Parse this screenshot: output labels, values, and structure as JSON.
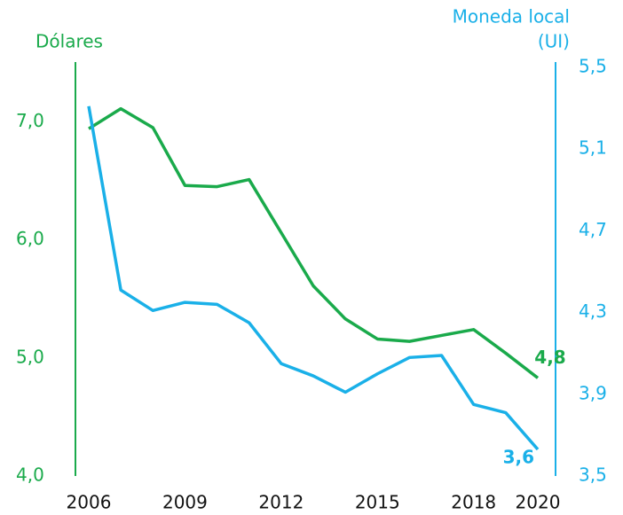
{
  "chart_data": {
    "type": "line",
    "ylabel": "Dólares",
    "y2label": [
      "Moneda local",
      "(UI)"
    ],
    "x": [
      2006,
      2007,
      2008,
      2009,
      2010,
      2011,
      2012,
      2013,
      2014,
      2015,
      2016,
      2017,
      2018,
      2019,
      2020
    ],
    "xlim": [
      2006,
      2020
    ],
    "xticks": [
      2006,
      2009,
      2012,
      2015,
      2018,
      2020
    ],
    "ylim": [
      4.0,
      7.46
    ],
    "yticks": [
      {
        "value": 4,
        "label": "4,0"
      },
      {
        "value": 5,
        "label": "5,0"
      },
      {
        "value": 6,
        "label": "6,0"
      },
      {
        "value": 7,
        "label": "7,0"
      }
    ],
    "y2lim": [
      3.5,
      5.5
    ],
    "y2ticks": [
      {
        "value": 3.5,
        "label": "3,5"
      },
      {
        "value": 3.9,
        "label": "3,9"
      },
      {
        "value": 4.3,
        "label": "4,3"
      },
      {
        "value": 4.7,
        "label": "4,7"
      },
      {
        "value": 5.1,
        "label": "5,1"
      },
      {
        "value": 5.5,
        "label": "5,5"
      }
    ],
    "series": [
      {
        "axis": "y",
        "color": "#1aaa4b",
        "values": [
          6.94,
          7.11,
          6.95,
          6.46,
          6.45,
          6.51,
          6.06,
          5.61,
          5.33,
          5.16,
          5.14,
          5.19,
          5.24,
          5.04,
          4.83
        ],
        "value_labels": [
          null,
          null,
          null,
          null,
          null,
          null,
          null,
          null,
          null,
          null,
          null,
          null,
          null,
          null,
          "4,8"
        ]
      },
      {
        "axis": "y2",
        "color": "#1ab0e8",
        "values": [
          5.31,
          4.41,
          4.31,
          4.35,
          4.34,
          4.25,
          4.05,
          3.99,
          3.91,
          4.0,
          4.08,
          4.09,
          3.85,
          3.81,
          3.63
        ],
        "value_labels": [
          null,
          null,
          null,
          null,
          null,
          null,
          null,
          null,
          null,
          null,
          null,
          null,
          null,
          null,
          "3,6"
        ]
      }
    ]
  }
}
